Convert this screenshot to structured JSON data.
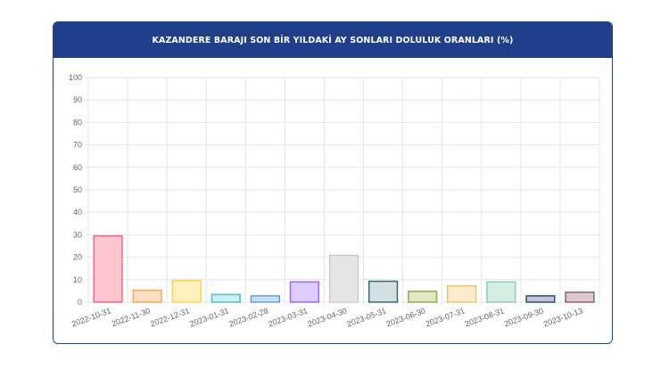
{
  "panel": {
    "title": "KAZANDERE BARAJI SON BİR YILDAKİ AY SONLARI DOLULUK ORANLARI (%)"
  },
  "chart_data": {
    "type": "bar",
    "title": "KAZANDERE BARAJI SON BİR YILDAKİ AY SONLARI DOLULUK ORANLARI (%)",
    "xlabel": "",
    "ylabel": "",
    "ylim": [
      0,
      100
    ],
    "yticks": [
      "0",
      "10",
      "20",
      "30",
      "40",
      "50",
      "60",
      "70",
      "80",
      "90",
      "100"
    ],
    "grid": true,
    "legend": "none",
    "categories": [
      "2022-10-31",
      "2022-11-30",
      "2022-12-31",
      "2023-01-31",
      "2023-02-28",
      "2023-03-31",
      "2023-04-30",
      "2023-05-31",
      "2023-06-30",
      "2023-07-31",
      "2023-08-31",
      "2023-09-30",
      "2023-10-13"
    ],
    "values": [
      29.5,
      5.3,
      9.6,
      3.4,
      2.8,
      9.0,
      20.8,
      9.3,
      4.8,
      7.3,
      9.0,
      2.8,
      4.4
    ],
    "fill_colors": [
      "#ffc7d2",
      "#ffe0c2",
      "#fff0c0",
      "#cdeff0",
      "#c9e0f7",
      "#e0ccff",
      "#e6e6e6",
      "#d2e0e1",
      "#e0e8c4",
      "#fbeccb",
      "#d6ede4",
      "#c0c8d8",
      "#ddc9d0"
    ],
    "border_colors": [
      "#ff6384",
      "#ffa550",
      "#ffcd56",
      "#4bc0c0",
      "#5aa0e6",
      "#9966ff",
      "#c9cbcf",
      "#2a6f72",
      "#8fa84a",
      "#e8c474",
      "#8fcbb6",
      "#3a4a6b",
      "#8a6070"
    ]
  }
}
